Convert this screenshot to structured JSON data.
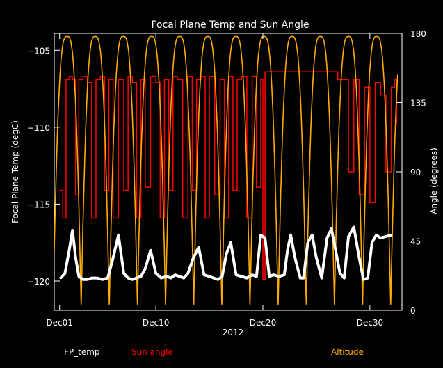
{
  "chart_data": {
    "type": "line",
    "title": "Focal Plane Temp and Sun Angle",
    "xlabel": "2012",
    "ylabel_left": "Focal Plane Temp (degC)",
    "ylabel_right": "Angle (degrees)",
    "x_unit": "days since Dec01 2012 00:00",
    "xlim": [
      -0.5,
      32
    ],
    "ylim_left": [
      -121.9,
      -103.9
    ],
    "ylim_right": [
      0,
      180
    ],
    "x_ticks": [
      {
        "value": 0,
        "label": "Dec01"
      },
      {
        "value": 9,
        "label": "Dec10"
      },
      {
        "value": 19,
        "label": "Dec20"
      },
      {
        "value": 29,
        "label": "Dec30"
      }
    ],
    "y_ticks_left": [
      {
        "value": -105,
        "label": "−105"
      },
      {
        "value": -110,
        "label": "−110"
      },
      {
        "value": -115,
        "label": "−115"
      },
      {
        "value": -120,
        "label": "−120"
      }
    ],
    "y_ticks_right": [
      {
        "value": 0,
        "label": "0"
      },
      {
        "value": 45,
        "label": "45"
      },
      {
        "value": 90,
        "label": "90"
      },
      {
        "value": 135,
        "label": "135"
      },
      {
        "value": 180,
        "label": "180"
      }
    ],
    "series": [
      {
        "name": "FP_temp",
        "color": "#ffffff",
        "axis": "left",
        "style": "points",
        "x": [
          0.1,
          0.5,
          0.9,
          1.2,
          1.5,
          1.8,
          2.2,
          2.6,
          3.0,
          3.5,
          4.0,
          4.5,
          5.0,
          5.5,
          6.0,
          6.4,
          6.8,
          7.2,
          7.6,
          8.0,
          8.5,
          9.0,
          9.5,
          10.0,
          10.4,
          10.8,
          11.2,
          11.6,
          12.0,
          12.5,
          13.0,
          13.5,
          14.0,
          14.4,
          14.8,
          15.2,
          15.6,
          16.0,
          16.5,
          17.0,
          17.5,
          18.0,
          18.4,
          18.8,
          19.2,
          19.6,
          20.0,
          20.5,
          21.0,
          21.3,
          21.6,
          22.0,
          22.5,
          22.8,
          23.2,
          23.6,
          24.0,
          24.5,
          25.0,
          25.4,
          25.8,
          26.2,
          26.6,
          27.0,
          27.5,
          28.0,
          28.4,
          28.8,
          29.2,
          29.6,
          30.0,
          30.5,
          31.0
        ],
        "y": [
          -119.8,
          -119.5,
          -118.0,
          -116.7,
          -118.5,
          -119.7,
          -119.9,
          -119.9,
          -119.8,
          -119.8,
          -119.9,
          -119.8,
          -118.5,
          -117.0,
          -119.5,
          -119.8,
          -119.9,
          -119.8,
          -119.7,
          -119.2,
          -118.0,
          -119.5,
          -119.8,
          -119.7,
          -119.8,
          -119.6,
          -119.7,
          -119.8,
          -119.5,
          -118.5,
          -117.8,
          -119.6,
          -119.7,
          -119.8,
          -119.9,
          -119.7,
          -118.2,
          -117.5,
          -119.6,
          -119.7,
          -119.8,
          -119.6,
          -119.7,
          -117.0,
          -117.2,
          -119.7,
          -119.6,
          -119.7,
          -119.6,
          -118.0,
          -117.0,
          -118.5,
          -119.8,
          -119.8,
          -117.5,
          -117.0,
          -118.5,
          -119.8,
          -117.2,
          -116.6,
          -118.0,
          -119.5,
          -119.8,
          -117.1,
          -116.5,
          -118.5,
          -119.9,
          -119.8,
          -117.5,
          -117.0,
          -117.2,
          -117.1,
          -117.0
        ]
      },
      {
        "name": "Sun angle",
        "color": "#ff0000",
        "axis": "right",
        "style": "step",
        "x": [
          0,
          0.3,
          0.6,
          0.9,
          1.2,
          1.5,
          1.8,
          2.2,
          2.6,
          3.0,
          3.4,
          3.8,
          4.2,
          4.6,
          5.0,
          5.5,
          6.0,
          6.4,
          6.8,
          7.2,
          7.6,
          8.0,
          8.5,
          9.0,
          9.4,
          9.8,
          10.2,
          10.6,
          11.0,
          11.5,
          12.0,
          12.4,
          12.8,
          13.2,
          13.6,
          14.0,
          14.5,
          15.0,
          15.4,
          15.8,
          16.2,
          16.6,
          17.0,
          17.5,
          18.0,
          18.4,
          18.8,
          19.0,
          19.2,
          19.6,
          20.0,
          21.0,
          22.0,
          23.0,
          24.0,
          25.0,
          26.0,
          26.5,
          27.0,
          27.5,
          28.0,
          28.5,
          29.0,
          29.5,
          30.0,
          30.5,
          31.0,
          31.3,
          31.5
        ],
        "y": [
          78,
          60,
          150,
          152,
          150,
          75,
          150,
          152,
          148,
          60,
          150,
          152,
          78,
          150,
          60,
          150,
          78,
          152,
          148,
          60,
          150,
          80,
          152,
          148,
          60,
          150,
          78,
          152,
          150,
          60,
          152,
          78,
          150,
          152,
          60,
          152,
          75,
          150,
          60,
          152,
          78,
          150,
          152,
          60,
          152,
          80,
          150,
          20,
          155,
          155,
          155,
          155,
          155,
          155,
          155,
          155,
          150,
          150,
          90,
          150,
          75,
          145,
          70,
          148,
          140,
          90,
          145,
          150,
          120
        ]
      },
      {
        "name": "Altitude",
        "color": "#ffaa00",
        "axis": "right",
        "style": "line",
        "function": "orbit altitude, ~2.63 day period",
        "peaks_x": [
          0.7,
          3.33,
          5.96,
          8.59,
          11.22,
          13.85,
          16.48,
          19.11,
          21.74,
          24.37,
          27.0,
          29.63
        ],
        "peak_value": 178,
        "trough_value": 2
      }
    ],
    "legend": [
      {
        "label": "FP_temp",
        "color": "#ffffff"
      },
      {
        "label": "Sun angle",
        "color": "#ff0000"
      },
      {
        "label": "Altitude",
        "color": "#ffaa00"
      }
    ],
    "grid": false,
    "legend_position": "bottom"
  }
}
